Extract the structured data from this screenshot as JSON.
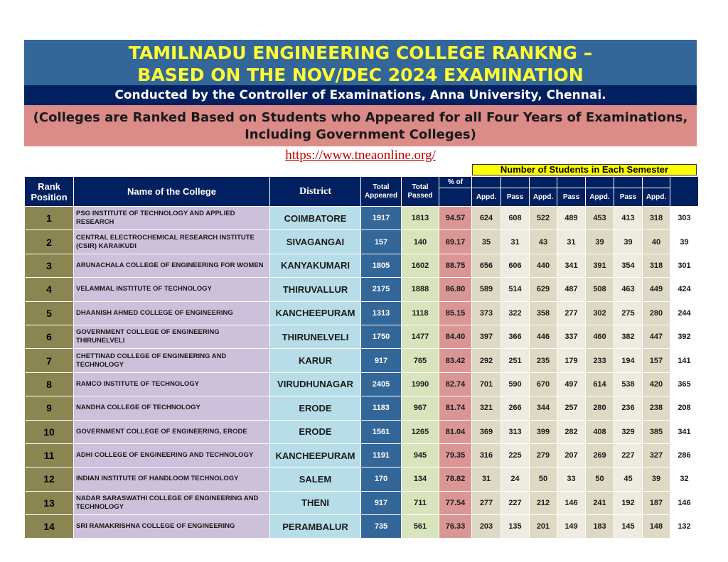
{
  "title": {
    "line1": "TAMILNADU ENGINEERING COLLEGE RANKNG –",
    "line2": "BASED ON THE NOV/DEC 2024 EXAMINATION"
  },
  "conducted_by": "Conducted by the Controller of Examinations, Anna University, Chennai.",
  "note": {
    "line1": "(Colleges are Ranked Based on Students who Appeared for all Four Years of Examinations,",
    "line2": "Including Government Colleges)"
  },
  "website": "https://www.tneaonline.org/",
  "semester_caption": "Number of Students in Each Semester",
  "headers": {
    "rank": "Rank Position",
    "name": "Name of the College",
    "district": "District",
    "appeared": "Total Appeared",
    "passed": "Total Passed",
    "pct": "% of",
    "appd": "Appd.",
    "pass": "Pass"
  },
  "rows": [
    {
      "rank": "1",
      "name": "PSG INSTITUTE OF TECHNOLOGY AND APPLIED RESEARCH",
      "district": "COIMBATORE",
      "appeared": "1917",
      "passed": "1813",
      "pct": "94.57",
      "s": [
        "624",
        "608",
        "522",
        "489",
        "453",
        "413",
        "318",
        "303"
      ]
    },
    {
      "rank": "2",
      "name": "CENTRAL ELECTROCHEMICAL RESEARCH INSTITUTE (CSIR) KARAIKUDI",
      "district": "SIVAGANGAI",
      "appeared": "157",
      "passed": "140",
      "pct": "89.17",
      "s": [
        "35",
        "31",
        "43",
        "31",
        "39",
        "39",
        "40",
        "39"
      ]
    },
    {
      "rank": "3",
      "name": "ARUNACHALA COLLEGE OF ENGINEERING FOR WOMEN",
      "district": "KANYAKUMARI",
      "appeared": "1805",
      "passed": "1602",
      "pct": "88.75",
      "s": [
        "656",
        "606",
        "440",
        "341",
        "391",
        "354",
        "318",
        "301"
      ]
    },
    {
      "rank": "4",
      "name": "VELAMMAL INSTITUTE OF TECHNOLOGY",
      "district": "THIRUVALLUR",
      "appeared": "2175",
      "passed": "1888",
      "pct": "86.80",
      "s": [
        "589",
        "514",
        "629",
        "487",
        "508",
        "463",
        "449",
        "424"
      ]
    },
    {
      "rank": "5",
      "name": "DHAANISH AHMED COLLEGE OF ENGINEERING",
      "district": "KANCHEEPURAM",
      "appeared": "1313",
      "passed": "1118",
      "pct": "85.15",
      "s": [
        "373",
        "322",
        "358",
        "277",
        "302",
        "275",
        "280",
        "244"
      ]
    },
    {
      "rank": "6",
      "name": "GOVERNMENT COLLEGE OF ENGINEERING THIRUNELVELI",
      "district": "THIRUNELVELI",
      "appeared": "1750",
      "passed": "1477",
      "pct": "84.40",
      "s": [
        "397",
        "366",
        "446",
        "337",
        "460",
        "382",
        "447",
        "392"
      ]
    },
    {
      "rank": "7",
      "name": "CHETTINAD COLLEGE OF ENGINEERING AND TECHNOLOGY",
      "district": "KARUR",
      "appeared": "917",
      "passed": "765",
      "pct": "83.42",
      "s": [
        "292",
        "251",
        "235",
        "179",
        "233",
        "194",
        "157",
        "141"
      ]
    },
    {
      "rank": "8",
      "name": "RAMCO INSTITUTE OF TECHNOLOGY",
      "district": "VIRUDHUNAGAR",
      "appeared": "2405",
      "passed": "1990",
      "pct": "82.74",
      "s": [
        "701",
        "590",
        "670",
        "497",
        "614",
        "538",
        "420",
        "365"
      ]
    },
    {
      "rank": "9",
      "name": "NANDHA COLLEGE OF TECHNOLOGY",
      "district": "ERODE",
      "appeared": "1183",
      "passed": "967",
      "pct": "81.74",
      "s": [
        "321",
        "266",
        "344",
        "257",
        "280",
        "236",
        "238",
        "208"
      ]
    },
    {
      "rank": "10",
      "name": "GOVERNMENT COLLEGE OF ENGINEERING, ERODE",
      "district": "ERODE",
      "appeared": "1561",
      "passed": "1265",
      "pct": "81.04",
      "s": [
        "369",
        "313",
        "399",
        "282",
        "408",
        "329",
        "385",
        "341"
      ]
    },
    {
      "rank": "11",
      "name": "ADHI COLLEGE OF ENGINEERING AND TECHNOLOGY",
      "district": "KANCHEEPURAM",
      "appeared": "1191",
      "passed": "945",
      "pct": "79.35",
      "s": [
        "316",
        "225",
        "279",
        "207",
        "269",
        "227",
        "327",
        "286"
      ]
    },
    {
      "rank": "12",
      "name": "INDIAN INSTITUTE OF HANDLOOM TECHNOLOGY",
      "district": "SALEM",
      "appeared": "170",
      "passed": "134",
      "pct": "78.82",
      "s": [
        "31",
        "24",
        "50",
        "33",
        "50",
        "45",
        "39",
        "32"
      ]
    },
    {
      "rank": "13",
      "name": "NADAR SARASWATHI COLLEGE OF ENGINEERING AND TECHNOLOGY",
      "district": "THENI",
      "appeared": "917",
      "passed": "711",
      "pct": "77.54",
      "s": [
        "277",
        "227",
        "212",
        "146",
        "241",
        "192",
        "187",
        "146"
      ]
    },
    {
      "rank": "14",
      "name": "SRI RAMAKRISHNA COLLEGE OF ENGINEERING",
      "district": "PERAMBALUR",
      "appeared": "735",
      "passed": "561",
      "pct": "76.33",
      "s": [
        "203",
        "135",
        "201",
        "149",
        "183",
        "145",
        "148",
        "132"
      ]
    }
  ]
}
